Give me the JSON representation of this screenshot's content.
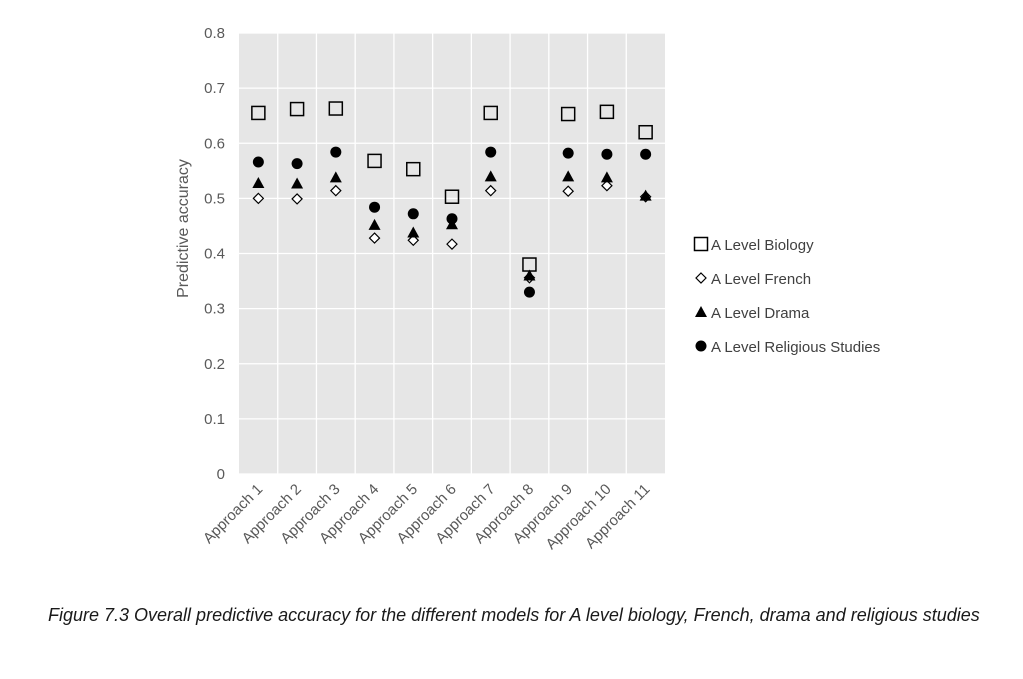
{
  "chart_data": {
    "type": "scatter",
    "title": "",
    "xlabel": "",
    "ylabel": "Predictive accuracy",
    "ylim": [
      0,
      0.8
    ],
    "yticks": [
      "0",
      "0.1",
      "0.2",
      "0.3",
      "0.4",
      "0.5",
      "0.6",
      "0.7",
      "0.8"
    ],
    "categories": [
      "Approach 1",
      "Approach 2",
      "Approach 3",
      "Approach 4",
      "Approach 5",
      "Approach 6",
      "Approach 7",
      "Approach 8",
      "Approach 9",
      "Approach 10",
      "Approach 11"
    ],
    "grid": true,
    "legend_position": "right",
    "series": [
      {
        "name": "A Level Biology",
        "marker": "open-square",
        "color": "#000000",
        "values": [
          0.655,
          0.662,
          0.663,
          0.568,
          0.553,
          0.503,
          0.655,
          0.38,
          0.653,
          0.657,
          0.62
        ]
      },
      {
        "name": "A Level French",
        "marker": "open-diamond",
        "color": "#000000",
        "values": [
          0.5,
          0.499,
          0.514,
          0.428,
          0.424,
          0.417,
          0.514,
          0.356,
          0.513,
          0.523,
          0.503
        ]
      },
      {
        "name": "A Level Drama",
        "marker": "filled-triangle",
        "color": "#000000",
        "values": [
          0.528,
          0.527,
          0.538,
          0.452,
          0.438,
          0.453,
          0.54,
          0.36,
          0.54,
          0.538,
          0.505
        ]
      },
      {
        "name": "A Level Religious Studies",
        "marker": "filled-circle",
        "color": "#000000",
        "values": [
          0.566,
          0.563,
          0.584,
          0.484,
          0.472,
          0.463,
          0.584,
          0.33,
          0.582,
          0.58,
          0.58
        ]
      }
    ]
  },
  "caption": "Figure 7.3 Overall predictive accuracy for the different models for A level biology, French, drama and religious studies"
}
